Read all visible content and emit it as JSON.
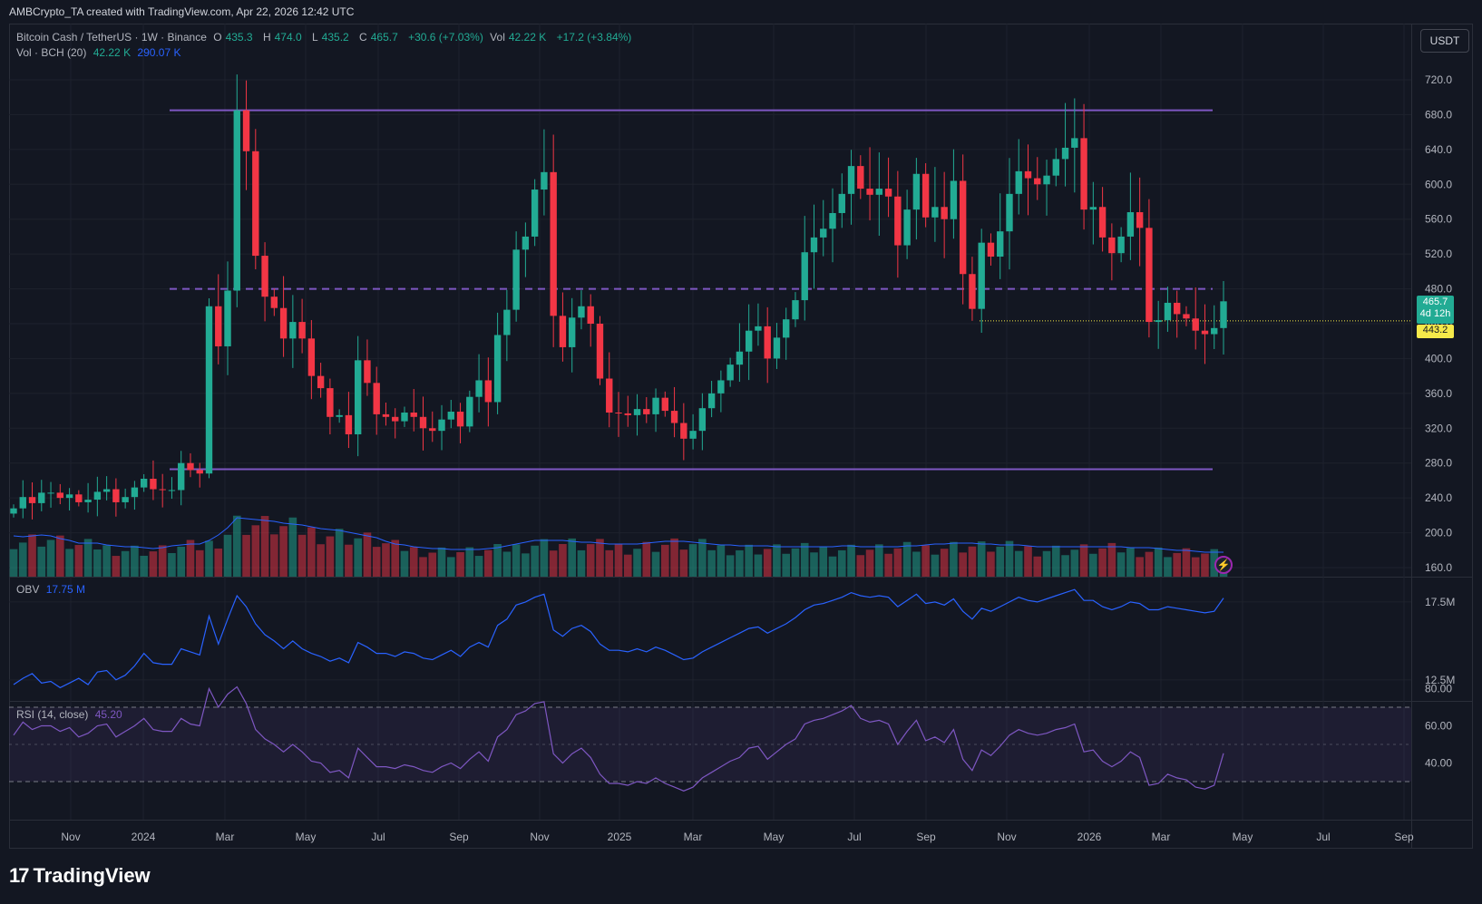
{
  "header": {
    "caption": "AMBCrypto_TA created with TradingView.com, Apr 22, 2026 12:42 UTC"
  },
  "legend": {
    "symbol": "Bitcoin Cash / TetherUS · 1W · Binance",
    "o_label": "O",
    "o_value": "435.3",
    "h_label": "H",
    "h_value": "474.0",
    "l_label": "L",
    "l_value": "435.2",
    "c_label": "C",
    "c_value": "465.7",
    "change": "+30.6 (+7.03%)",
    "vol_label": "Vol",
    "vol_value": "42.22 K",
    "vol_change": "+17.2 (+3.84%)",
    "vol_indicator": "Vol · BCH (20)",
    "vol_current": "42.22 K",
    "vol_ma": "290.07 K",
    "obv_label": "OBV",
    "obv_value": "17.75 M",
    "rsi_label": "RSI (14, close)",
    "rsi_value": "45.20"
  },
  "currency_button": "USDT",
  "price_tags": {
    "current_price": "465.7",
    "countdown": "4d 12h",
    "level": "443.2"
  },
  "logo_text": "TradingView",
  "colors": {
    "up": "#22ab94",
    "down": "#f23645",
    "level_lines": "#7e57c2",
    "obv_line": "#2962ff",
    "rsi_line": "#7e57c2",
    "vol_ma": "#2962ff",
    "background": "#131722"
  },
  "chart_data": {
    "type": "candlestick",
    "timeframe": "1W",
    "price_axis": {
      "ticks": [
        "720.0",
        "680.0",
        "640.0",
        "600.0",
        "560.0",
        "520.0",
        "480.0",
        "440.0",
        "400.0",
        "360.0",
        "320.0",
        "280.0",
        "240.0",
        "200.0",
        "160.0"
      ],
      "range": [
        150,
        740
      ]
    },
    "time_axis": {
      "ticks": [
        "Nov",
        "2024",
        "Mar",
        "May",
        "Jul",
        "Sep",
        "Nov",
        "2025",
        "Mar",
        "May",
        "Jul",
        "Sep",
        "Nov",
        "2026",
        "Mar",
        "May",
        "Jul",
        "Sep"
      ]
    },
    "obv_axis": {
      "ticks": [
        "17.5M",
        "12.5M"
      ]
    },
    "rsi_axis": {
      "ticks": [
        "80.00",
        "60.00",
        "40.00"
      ],
      "upper_band": 70,
      "lower_band": 30
    },
    "horizontal_levels": [
      {
        "price": 685,
        "style": "solid"
      },
      {
        "price": 480,
        "style": "dashed"
      },
      {
        "price": 273,
        "style": "solid"
      },
      {
        "price": 443.2,
        "style": "dotted"
      }
    ],
    "closes": [
      228,
      241,
      234,
      246,
      246,
      240,
      244,
      235,
      238,
      247,
      250,
      235,
      241,
      252,
      262,
      250,
      249,
      249,
      280,
      272,
      268,
      460,
      414,
      478,
      685,
      638,
      518,
      471,
      458,
      423,
      442,
      423,
      380,
      366,
      333,
      335,
      313,
      398,
      372,
      336,
      333,
      328,
      338,
      333,
      320,
      317,
      330,
      339,
      322,
      356,
      375,
      350,
      427,
      456,
      525,
      540,
      594,
      614,
      449,
      413,
      447,
      460,
      440,
      377,
      338,
      337,
      335,
      342,
      336,
      355,
      340,
      326,
      308,
      317,
      343,
      360,
      375,
      393,
      408,
      432,
      437,
      400,
      424,
      445,
      467,
      522,
      539,
      549,
      567,
      589,
      621,
      595,
      588,
      595,
      586,
      530,
      571,
      612,
      562,
      574,
      560,
      604,
      497,
      457,
      533,
      517,
      546,
      589,
      615,
      607,
      600,
      610,
      629,
      642,
      653,
      571,
      574,
      539,
      521,
      540,
      568,
      550,
      442,
      444,
      464,
      451,
      446,
      432,
      428,
      435,
      465.7
    ],
    "volume_ma": [
      45,
      44,
      45,
      46,
      45,
      42,
      40,
      37,
      37,
      37,
      35,
      34,
      33,
      33,
      32,
      31,
      32,
      34,
      35,
      36,
      36,
      40,
      46,
      54,
      65,
      64,
      63,
      62,
      61,
      59,
      58,
      57,
      55,
      53,
      52,
      51,
      49,
      47,
      45,
      43,
      39,
      36,
      35,
      33,
      32,
      31,
      31,
      30,
      30,
      30,
      30,
      31,
      32,
      34,
      36,
      38,
      40,
      40,
      40,
      40,
      39,
      38,
      38,
      37,
      36,
      36,
      36,
      36,
      37,
      38,
      39,
      39,
      39,
      38,
      37,
      36,
      35,
      35,
      34,
      34,
      34,
      34,
      33,
      33,
      33,
      33,
      33,
      33,
      33,
      34,
      34,
      33,
      33,
      33,
      33,
      33,
      34,
      34,
      35,
      36,
      36,
      37,
      37,
      37,
      36,
      36,
      35,
      35,
      35,
      34,
      33,
      33,
      33,
      33,
      33,
      33,
      33,
      33,
      33,
      33,
      32,
      32,
      32,
      31,
      30,
      29,
      29,
      28,
      27,
      27,
      27
    ],
    "obv_values": [
      12.2,
      12.6,
      12.9,
      12.3,
      12.4,
      12.0,
      12.3,
      12.6,
      12.2,
      13.0,
      13.1,
      12.5,
      12.8,
      13.4,
      14.2,
      13.6,
      13.5,
      13.5,
      14.5,
      14.3,
      14.1,
      16.6,
      14.8,
      16.4,
      17.9,
      17.2,
      16.1,
      15.4,
      15.0,
      14.5,
      15.0,
      14.5,
      14.2,
      14.0,
      13.7,
      13.9,
      13.6,
      14.9,
      14.6,
      14.2,
      14.2,
      14.0,
      14.3,
      14.2,
      13.9,
      13.8,
      14.1,
      14.4,
      14.0,
      14.6,
      14.9,
      14.6,
      16.0,
      16.4,
      17.3,
      17.5,
      17.8,
      18.0,
      15.7,
      15.3,
      15.8,
      16.0,
      15.6,
      14.8,
      14.4,
      14.4,
      14.3,
      14.5,
      14.3,
      14.6,
      14.4,
      14.1,
      13.8,
      13.9,
      14.3,
      14.6,
      14.9,
      15.2,
      15.5,
      15.8,
      15.9,
      15.5,
      15.8,
      16.1,
      16.5,
      17.0,
      17.3,
      17.4,
      17.6,
      17.8,
      18.1,
      17.9,
      17.8,
      17.9,
      17.8,
      17.2,
      17.6,
      18.0,
      17.4,
      17.5,
      17.3,
      17.7,
      16.9,
      16.4,
      17.1,
      16.9,
      17.2,
      17.5,
      17.8,
      17.6,
      17.5,
      17.7,
      17.9,
      18.1,
      18.3,
      17.6,
      17.6,
      17.2,
      17.0,
      17.2,
      17.5,
      17.4,
      17.0,
      17.0,
      17.2,
      17.1,
      17.0,
      16.9,
      16.8,
      16.9,
      17.75
    ],
    "rsi_values": [
      55,
      62,
      58,
      60,
      60,
      57,
      59,
      54,
      56,
      60,
      61,
      54,
      57,
      60,
      64,
      58,
      57,
      57,
      64,
      61,
      60,
      80,
      70,
      77,
      81,
      72,
      58,
      53,
      50,
      46,
      50,
      46,
      41,
      40,
      35,
      36,
      32,
      48,
      43,
      38,
      38,
      37,
      39,
      38,
      36,
      35,
      38,
      40,
      37,
      42,
      46,
      41,
      54,
      58,
      66,
      68,
      72,
      73,
      45,
      40,
      45,
      48,
      43,
      34,
      29,
      29,
      28,
      30,
      29,
      32,
      29,
      27,
      25,
      27,
      32,
      35,
      38,
      41,
      43,
      48,
      49,
      42,
      46,
      50,
      53,
      61,
      63,
      64,
      66,
      68,
      71,
      64,
      62,
      63,
      61,
      50,
      57,
      63,
      52,
      54,
      51,
      58,
      42,
      36,
      47,
      44,
      49,
      55,
      58,
      56,
      55,
      56,
      58,
      59,
      61,
      46,
      47,
      41,
      38,
      41,
      46,
      43,
      28,
      29,
      34,
      32,
      31,
      27,
      26,
      28,
      45.2
    ]
  }
}
